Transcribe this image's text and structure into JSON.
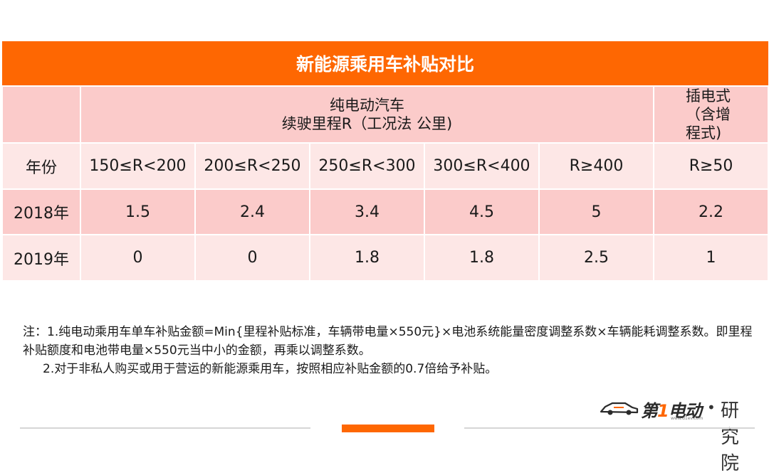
{
  "table": {
    "title": "新能源乘用车补贴对比",
    "group_header": {
      "bev_line1": "纯电动汽车",
      "bev_line2": "续驶里程R（工况法 公里)",
      "phev_line1": "插电式",
      "phev_line2": "（含增",
      "phev_line3": "程式)"
    },
    "columns": [
      "年份",
      "150≤R<200",
      "200≤R<250",
      "250≤R<300",
      "300≤R<400",
      "R≥400",
      "R≥50"
    ],
    "rows": [
      [
        "2018年",
        "1.5",
        "2.4",
        "3.4",
        "4.5",
        "5",
        "2.2"
      ],
      [
        "2019年",
        "0",
        "0",
        "1.8",
        "1.8",
        "2.5",
        "1"
      ]
    ]
  },
  "notes": {
    "line1": "注：1.纯电动乘用车单车补贴金额=Min{里程补贴标准，车辆带电量×550元}×电池系统能量密度调整系数×车辆能耗调整系数。即里程补贴额度和电池带电量×550元当中小的金额，再乘以调整系数。",
    "line2": "2.对于非私人购买或用于营运的新能源乘用车，按照相应补贴金额的0.7倍给予补贴。"
  },
  "logo": {
    "brand_prefix": "第",
    "brand_one": "1",
    "brand_suffix": "电动",
    "dot": "•",
    "institute": "研究院",
    "url": "www.d1ev.com"
  },
  "colors": {
    "accent": "#fe6702",
    "header_pink": "#fbcbca",
    "row_light": "#fde7e6"
  }
}
